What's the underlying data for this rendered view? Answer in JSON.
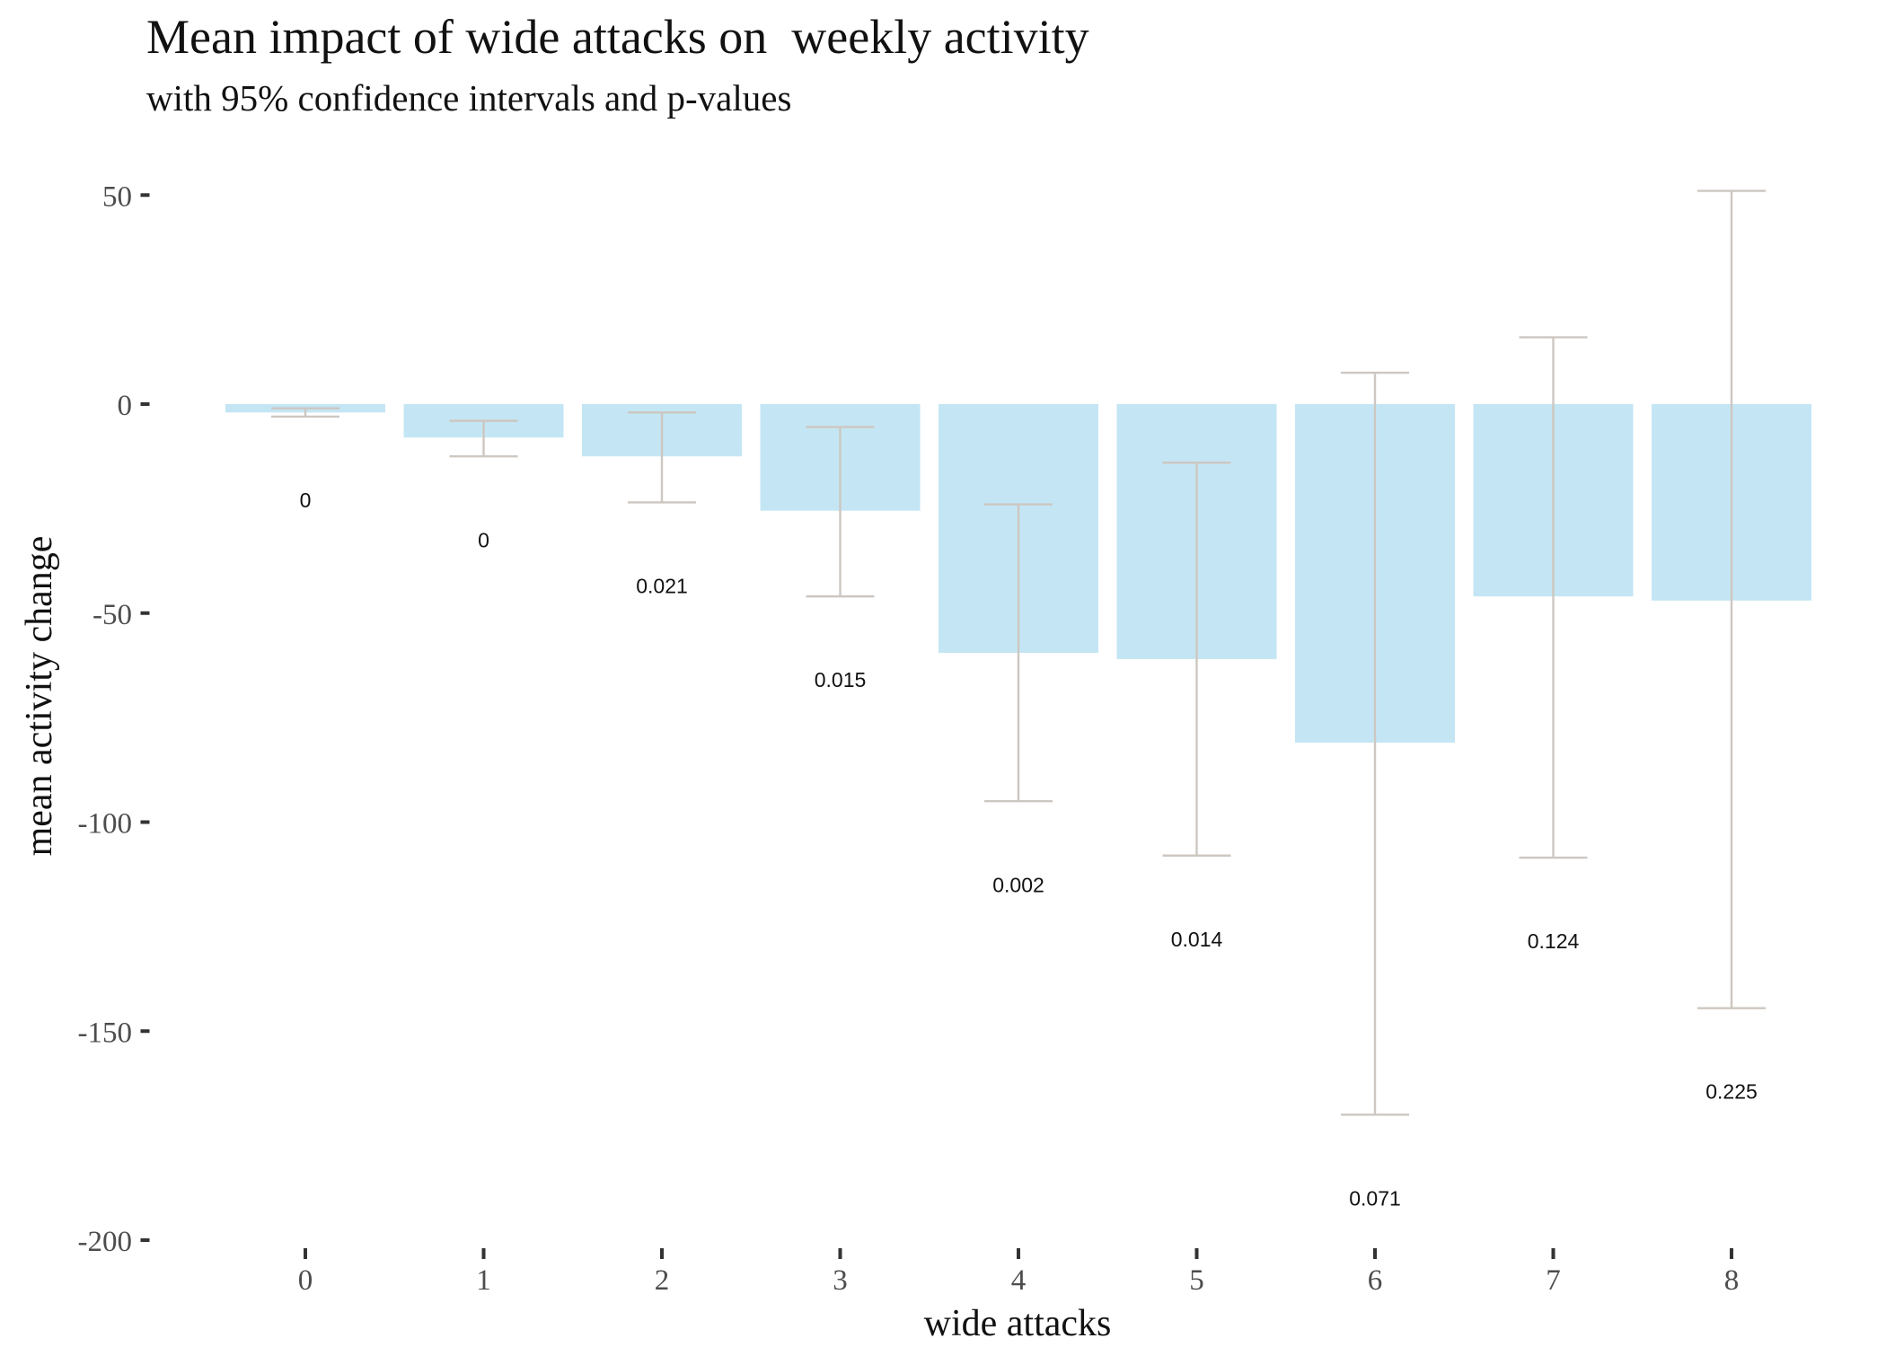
{
  "chart_data": {
    "type": "bar",
    "title": "Mean impact of wide attacks on  weekly activity",
    "subtitle": "with 95% confidence intervals and p-values",
    "xlabel": "wide attacks",
    "ylabel": "mean activity change",
    "categories": [
      "0",
      "1",
      "2",
      "3",
      "4",
      "5",
      "6",
      "7",
      "8"
    ],
    "values": [
      -2,
      -8,
      -12.5,
      -25.5,
      -59.5,
      -61,
      -81,
      -46,
      -47
    ],
    "ci_lower": [
      -3,
      -12.5,
      -23.5,
      -46,
      -95,
      -108,
      -170,
      -108.5,
      -144.5
    ],
    "ci_upper": [
      -1,
      -4,
      -2,
      -5.5,
      -24,
      -14,
      7.5,
      16,
      51
    ],
    "p_values": [
      "0",
      "0",
      "0.021",
      "0.015",
      "0.002",
      "0.014",
      "0.071",
      "0.124",
      "0.225"
    ],
    "p_value_positions": [
      -23,
      -32.5,
      -43.5,
      -66,
      -115,
      -128,
      -190,
      -128.5,
      -164.5
    ],
    "yticks": [
      50,
      0,
      -50,
      -100,
      -150,
      -200
    ],
    "ytick_labels": [
      "50",
      "0",
      "-50",
      "-100",
      "-150",
      "-200"
    ],
    "ylim": [
      -200,
      50
    ],
    "grid": false,
    "bar_color": "#c4e6f4",
    "errorbar_color": "#cdc7c1"
  }
}
